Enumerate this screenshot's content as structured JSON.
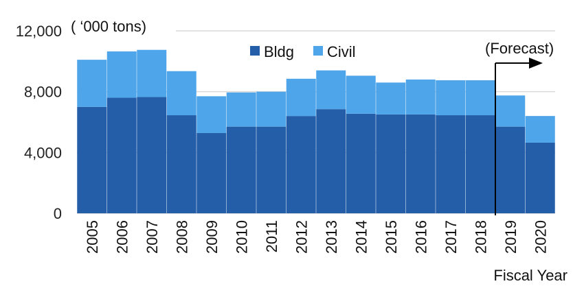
{
  "chart_data": {
    "type": "bar",
    "stacked": true,
    "unit_label": "( ‘000 tons)",
    "xlabel": "Fiscal Year",
    "ylabel": "",
    "ylim": [
      0,
      12000
    ],
    "yticks": [
      0,
      4000,
      8000,
      12000
    ],
    "ytick_labels": [
      "0",
      "4,000",
      "8,000",
      "12,000"
    ],
    "grid": true,
    "legend_position": "top-center",
    "categories": [
      "2005",
      "2006",
      "2007",
      "2008",
      "2009",
      "2010",
      "2011",
      "2012",
      "2013",
      "2014",
      "2015",
      "2016",
      "2017",
      "2018",
      "2019",
      "2020"
    ],
    "series": [
      {
        "name": "Bldg",
        "color": "#255ea8",
        "values": [
          7000,
          7600,
          7650,
          6450,
          5280,
          5700,
          5700,
          6400,
          6850,
          6550,
          6500,
          6500,
          6450,
          6450,
          5700,
          4650
        ]
      },
      {
        "name": "Civil",
        "color": "#4ea5ea",
        "values": [
          3100,
          3050,
          3100,
          2900,
          2420,
          2250,
          2300,
          2450,
          2550,
          2500,
          2100,
          2300,
          2300,
          2300,
          2050,
          1750
        ]
      }
    ],
    "annotation": {
      "text": "(Forecast)",
      "boundary_between": [
        "2018",
        "2019"
      ]
    }
  }
}
